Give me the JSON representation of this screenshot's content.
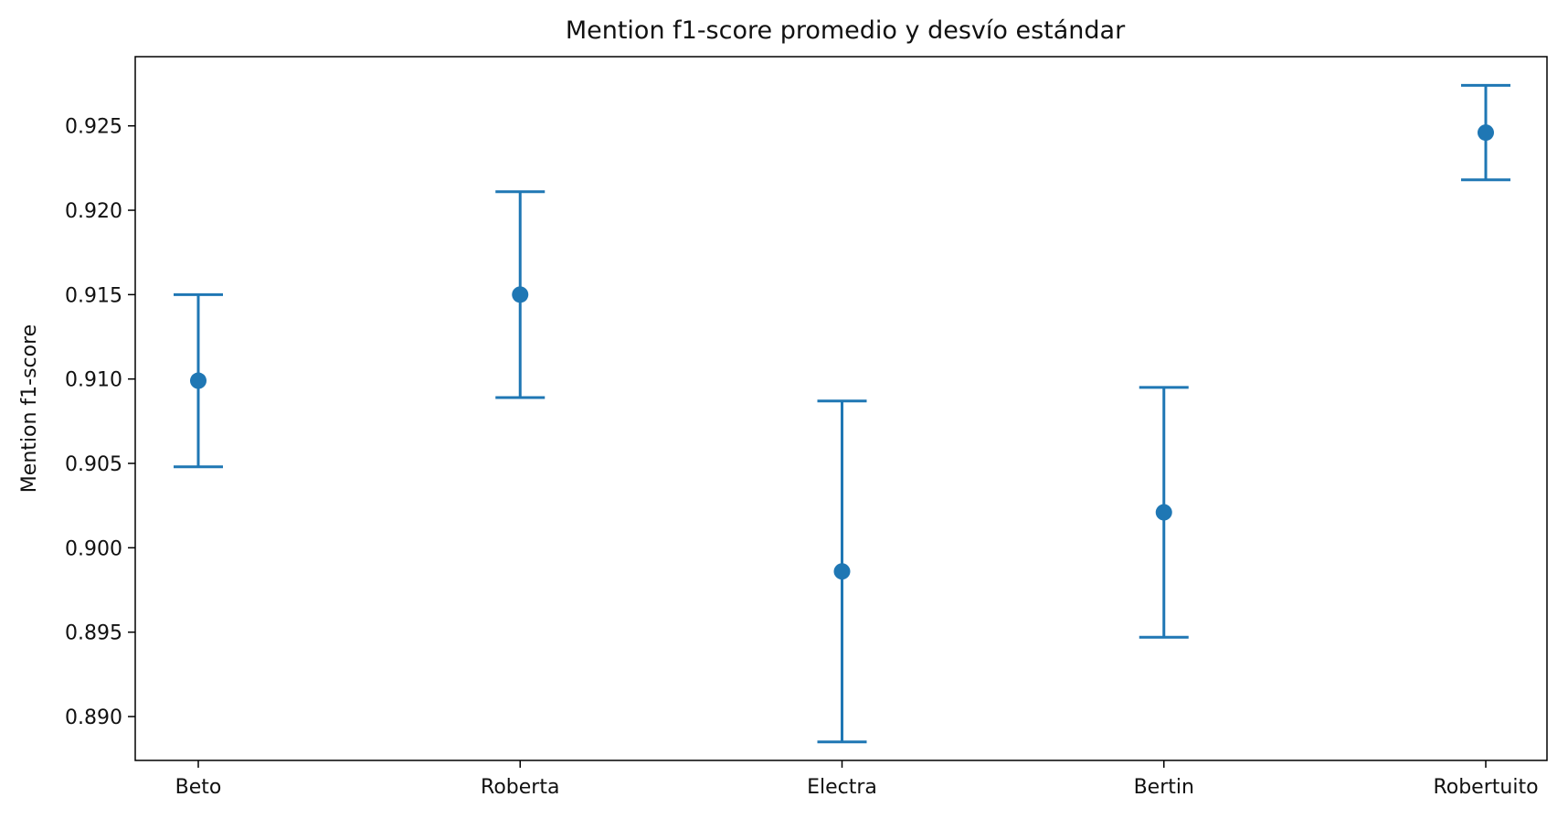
{
  "chart_data": {
    "type": "scatter",
    "title": "Mention f1-score promedio y desvío estándar",
    "xlabel": "",
    "ylabel": "Mention f1-score",
    "categories": [
      "Beto",
      "Roberta",
      "Electra",
      "Bertin",
      "Robertuito"
    ],
    "series": [
      {
        "values": [
          0.9099,
          0.915,
          0.8986,
          0.9021,
          0.9246
        ],
        "error": [
          0.0051,
          0.0061,
          0.0101,
          0.0074,
          0.0028
        ]
      }
    ],
    "ylim": [
      0.8874,
      0.9291
    ],
    "yticks": [
      "0.890",
      "0.895",
      "0.900",
      "0.905",
      "0.910",
      "0.915",
      "0.920",
      "0.925"
    ],
    "grid": false,
    "legend": "none",
    "color": "#1f77b4"
  }
}
